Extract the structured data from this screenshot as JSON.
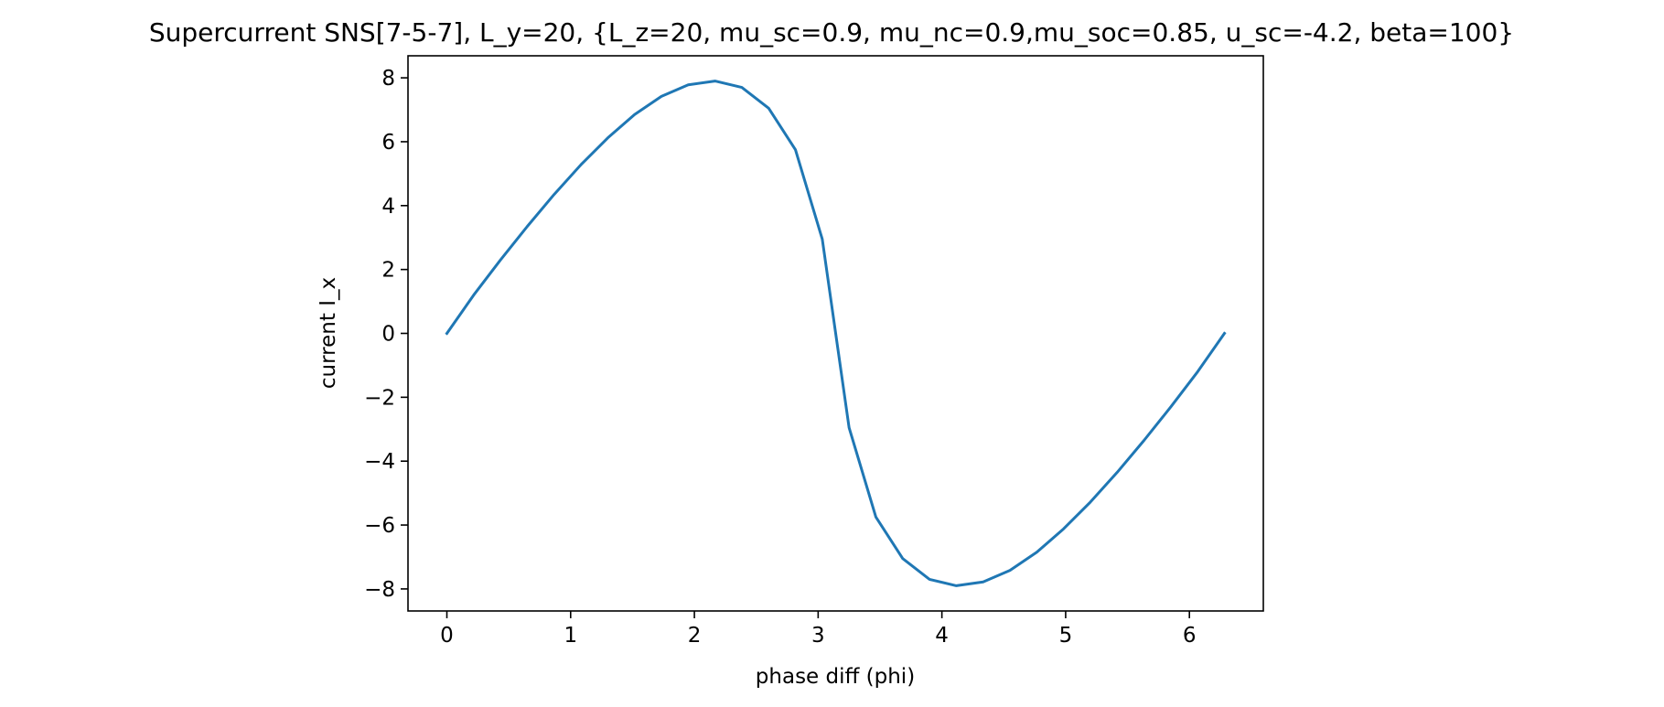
{
  "chart_data": {
    "type": "line",
    "title": "Supercurrent SNS[7-5-7], L_y=20, {L_z=20, mu_sc=0.9, mu_nc=0.9,mu_soc=0.85, u_sc=-4.2, beta=100}",
    "xlabel": "phase diff (phi)",
    "ylabel": "current I_x",
    "xlim": [
      -0.3142,
      6.5973
    ],
    "ylim": [
      -8.69,
      8.69
    ],
    "xticks": [
      0,
      1,
      2,
      3,
      4,
      5,
      6
    ],
    "yticks": [
      -8,
      -6,
      -4,
      -2,
      0,
      2,
      4,
      6,
      8
    ],
    "xtick_labels": [
      "0",
      "1",
      "2",
      "3",
      "4",
      "5",
      "6"
    ],
    "ytick_labels": [
      "−8",
      "−6",
      "−4",
      "−2",
      "0",
      "2",
      "4",
      "6",
      "8"
    ],
    "grid": false,
    "series": [
      {
        "color": "#1f77b4",
        "x": [
          0,
          0.2167,
          0.4333,
          0.65,
          0.8666,
          1.0833,
          1.3,
          1.5166,
          1.7333,
          1.95,
          2.1666,
          2.3833,
          2.6,
          2.8166,
          3.0333,
          3.25,
          3.4666,
          3.6833,
          3.9,
          4.1166,
          4.3333,
          4.55,
          4.7666,
          4.9833,
          5.2,
          5.4166,
          5.6333,
          5.85,
          6.0666,
          6.2832
        ],
        "y": [
          0.0,
          1.2,
          2.3,
          3.35,
          4.35,
          5.28,
          6.12,
          6.85,
          7.42,
          7.78,
          7.9,
          7.7,
          7.05,
          5.75,
          2.95,
          -2.95,
          -5.75,
          -7.05,
          -7.7,
          -7.9,
          -7.78,
          -7.42,
          -6.85,
          -6.12,
          -5.28,
          -4.35,
          -3.35,
          -2.3,
          -1.2,
          0.0
        ]
      }
    ]
  }
}
